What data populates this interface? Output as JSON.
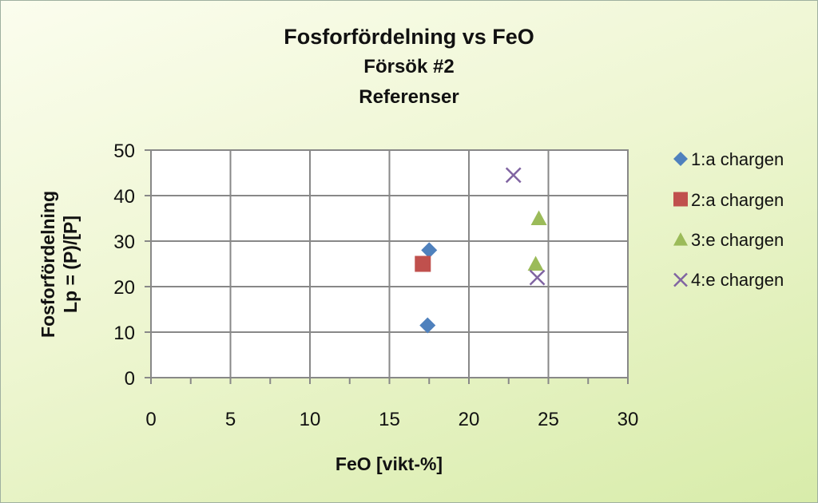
{
  "chart_data": {
    "type": "scatter",
    "title": "Fosforfördelning vs FeO",
    "subtitle_lines": [
      "Försök #2",
      "Referenser"
    ],
    "xlabel": "FeO [vikt-%]",
    "ylabel_lines": [
      "Fosforfördelning",
      "Lp = (P)/[P]"
    ],
    "xlim": [
      0,
      30
    ],
    "ylim": [
      0,
      50
    ],
    "x_ticks": [
      "0",
      "5",
      "10",
      "15",
      "20",
      "25",
      "30"
    ],
    "y_ticks": [
      "0",
      "10",
      "20",
      "30",
      "40",
      "50"
    ],
    "grid": true,
    "legend_position": "right",
    "series": [
      {
        "name": "1:a chargen",
        "marker": "diamond",
        "color": "#4f81bd",
        "points": [
          {
            "x": 17.5,
            "y": 28
          },
          {
            "x": 17.4,
            "y": 11.5
          }
        ]
      },
      {
        "name": "2:a chargen",
        "marker": "square",
        "color": "#c0504d",
        "points": [
          {
            "x": 17.1,
            "y": 25
          }
        ]
      },
      {
        "name": "3:e chargen",
        "marker": "triangle",
        "color": "#9bbb59",
        "points": [
          {
            "x": 24.4,
            "y": 35
          },
          {
            "x": 24.2,
            "y": 25
          }
        ]
      },
      {
        "name": "4:e chargen",
        "marker": "x",
        "color": "#8064a2",
        "points": [
          {
            "x": 22.8,
            "y": 44.5
          },
          {
            "x": 24.3,
            "y": 22
          }
        ]
      }
    ]
  }
}
